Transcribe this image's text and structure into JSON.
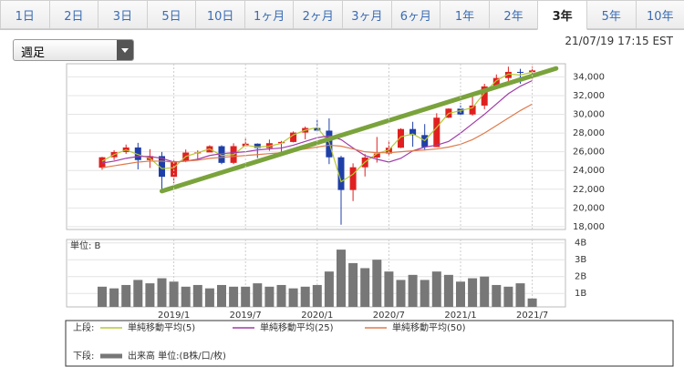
{
  "tabs": [
    "1日",
    "2日",
    "3日",
    "5日",
    "10日",
    "1ヶ月",
    "2ヶ月",
    "3ヶ月",
    "6ヶ月",
    "1年",
    "2年",
    "3年",
    "5年",
    "10年"
  ],
  "active_tab": 11,
  "dropdown": "週足",
  "timestamp": "21/07/19 17:15 EST",
  "legend": {
    "upper": "上段:",
    "lower": "下段:"
  },
  "chart_data": [
    {
      "type": "candlestick",
      "up_color": "#e02020",
      "down_color": "#1f3fa8",
      "grid": true,
      "open": [
        24300,
        25415,
        25965,
        26458,
        25116,
        25538,
        23327,
        24999,
        25916,
        25929,
        26593,
        24815,
        26600,
        26864,
        26403,
        26917,
        27046,
        28051,
        28538,
        28256,
        25409,
        21917,
        24346,
        25383,
        25813,
        26428,
        28430,
        27782,
        26502,
        29639,
        30606,
        29983,
        30932,
        32982,
        33875,
        34529,
        34502
      ],
      "high": [
        25461,
        26167,
        26769,
        26952,
        26277,
        25980,
        25075,
        26241,
        26155,
        26696,
        26696,
        26907,
        27399,
        26898,
        27306,
        27154,
        28175,
        28701,
        29374,
        29568,
        25562,
        24765,
        25758,
        27580,
        27227,
        28502,
        29199,
        28958,
        30116,
        30637,
        31193,
        31961,
        33259,
        34256,
        35091,
        34849,
        35092
      ],
      "low": [
        24080,
        25123,
        25774,
        24122,
        24268,
        21713,
        22639,
        24883,
        25208,
        25999,
        24680,
        24680,
        26674,
        25339,
        26100,
        25743,
        27000,
        27326,
        28180,
        24681,
        18214,
        20735,
        23361,
        24843,
        25524,
        26393,
        26537,
        26143,
        26501,
        29602,
        29857,
        29856,
        30547,
        32742,
        33473,
        33271,
        33741
      ],
      "close": [
        25415,
        25965,
        26458,
        25116,
        25538,
        23327,
        24999,
        25916,
        25929,
        26593,
        24815,
        26600,
        26864,
        26403,
        26917,
        27046,
        28051,
        28538,
        28256,
        25409,
        21917,
        24346,
        25383,
        25813,
        26428,
        28430,
        27782,
        26502,
        29639,
        30606,
        29983,
        30932,
        32982,
        33875,
        34529,
        34502,
        34688
      ],
      "series": [
        {
          "name": "単純移動平均(5)",
          "color": "#b5c934",
          "values": [
            25000,
            25700,
            26200,
            25700,
            25300,
            24200,
            24300,
            25500,
            25900,
            26300,
            25600,
            25700,
            26700,
            26500,
            26600,
            26900,
            27800,
            28300,
            28600,
            27000,
            22800,
            23600,
            24900,
            25800,
            26200,
            27600,
            27900,
            27200,
            28600,
            30100,
            30400,
            30700,
            32300,
            33600,
            34300,
            34200,
            34500
          ]
        },
        {
          "name": "単純移動平均(25)",
          "color": "#a03ca8",
          "values": [
            24800,
            25000,
            25300,
            25500,
            25500,
            25300,
            24900,
            25000,
            25200,
            25600,
            25800,
            25900,
            26000,
            26200,
            26300,
            26400,
            26700,
            27100,
            27500,
            27700,
            27300,
            26400,
            25600,
            25200,
            24900,
            25300,
            26100,
            26500,
            26700,
            27100,
            28000,
            29000,
            30000,
            31100,
            32200,
            33000,
            33600
          ]
        },
        {
          "name": "単純移動平均(50)",
          "color": "#e07a4a",
          "values": [
            24300,
            24500,
            24700,
            24900,
            25000,
            25000,
            24900,
            25000,
            25100,
            25300,
            25400,
            25500,
            25600,
            25700,
            25800,
            25900,
            26100,
            26300,
            26500,
            26700,
            26600,
            26300,
            26000,
            25900,
            25900,
            26000,
            26100,
            26200,
            26300,
            26500,
            26800,
            27300,
            28000,
            28800,
            29600,
            30400,
            31100
          ]
        }
      ],
      "trendline": {
        "color": "#7aa33c",
        "x": [
          5,
          38
        ],
        "y": [
          21800,
          34900
        ]
      },
      "ylim": [
        17700,
        35400
      ],
      "yticks": [
        {
          "value": 18000,
          "label": "18,000"
        },
        {
          "value": 20000,
          "label": "20,000"
        },
        {
          "value": 22000,
          "label": "22,000"
        },
        {
          "value": 24000,
          "label": "24,000"
        },
        {
          "value": 26000,
          "label": "26,000"
        },
        {
          "value": 28000,
          "label": "28,000"
        },
        {
          "value": 30000,
          "label": "30,000"
        },
        {
          "value": 32000,
          "label": "32,000"
        },
        {
          "value": 34000,
          "label": "34,000"
        }
      ]
    },
    {
      "type": "bar",
      "unit_label": "単位: B",
      "categories": [
        null,
        null,
        null,
        null,
        null,
        null,
        "2019/1",
        null,
        null,
        null,
        null,
        null,
        "2019/7",
        null,
        null,
        null,
        null,
        null,
        "2020/1",
        null,
        null,
        null,
        null,
        null,
        "2020/7",
        null,
        null,
        null,
        null,
        null,
        "2021/1",
        null,
        null,
        null,
        null,
        null,
        "2021/7"
      ],
      "series": [
        {
          "name": "出来高 単位:(B株/口/枚)",
          "color": "#777777",
          "values": [
            1.4,
            1.3,
            1.5,
            1.8,
            1.6,
            1.9,
            1.7,
            1.4,
            1.5,
            1.3,
            1.5,
            1.4,
            1.4,
            1.6,
            1.4,
            1.5,
            1.3,
            1.4,
            1.5,
            2.3,
            3.6,
            2.8,
            2.5,
            3.0,
            2.3,
            1.8,
            2.1,
            1.8,
            2.3,
            2.1,
            1.7,
            1.9,
            2.0,
            1.5,
            1.4,
            1.6,
            0.7
          ]
        }
      ],
      "ylim": [
        0.2,
        4.2
      ],
      "yticks": [
        {
          "value": 1,
          "label": "1B"
        },
        {
          "value": 2,
          "label": "2B"
        },
        {
          "value": 3,
          "label": "3B"
        },
        {
          "value": 4,
          "label": "4B"
        }
      ]
    }
  ]
}
